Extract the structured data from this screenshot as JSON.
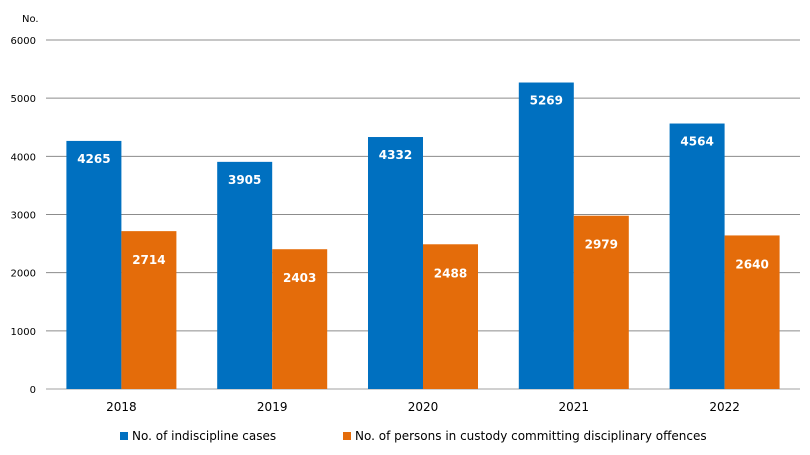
{
  "chart_data": {
    "type": "bar",
    "ylabel": "No.",
    "ylim": [
      0,
      6000
    ],
    "yticks": [
      0,
      1000,
      2000,
      3000,
      4000,
      5000,
      6000
    ],
    "grid": true,
    "legend_position": "bottom",
    "categories": [
      "2018",
      "2019",
      "2020",
      "2021",
      "2022"
    ],
    "series": [
      {
        "name": "No. of indiscipline cases",
        "values": [
          4265,
          3905,
          4332,
          5269,
          4564
        ],
        "color": "#0070C0"
      },
      {
        "name": "No. of persons in custody committing disciplinary offences",
        "values": [
          2714,
          2403,
          2488,
          2979,
          2640
        ],
        "color": "#E46C0A"
      }
    ]
  }
}
